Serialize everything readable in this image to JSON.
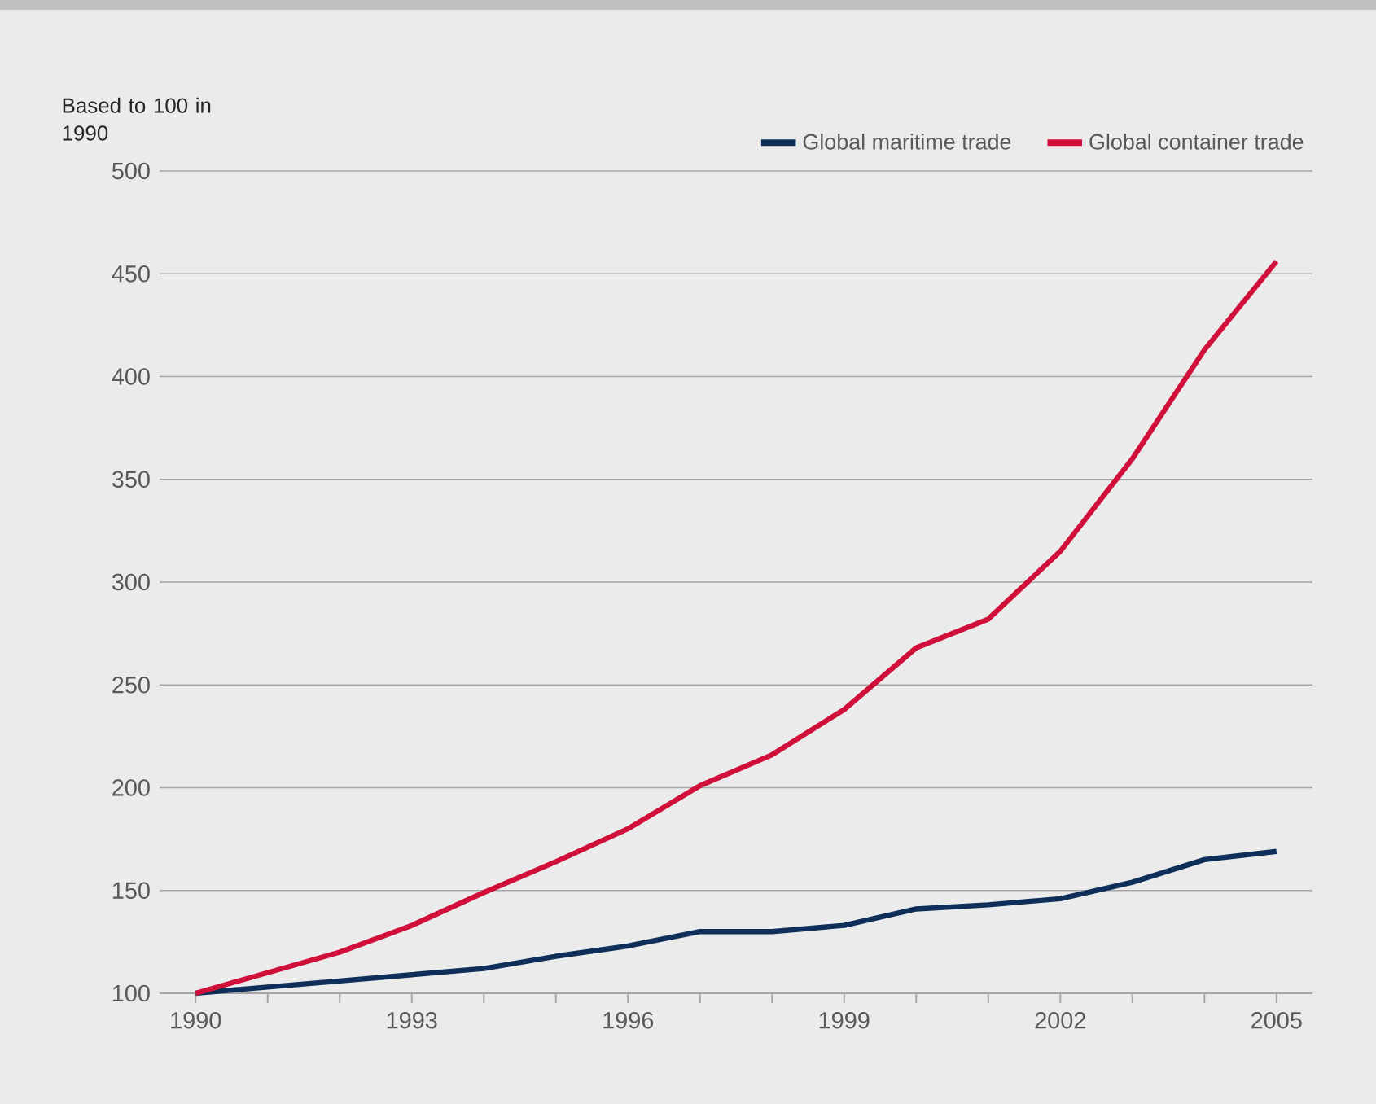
{
  "chart_data": {
    "type": "line",
    "ylabel": "Based to 100 in 1990",
    "x": [
      1990,
      1991,
      1992,
      1993,
      1994,
      1995,
      1996,
      1997,
      1998,
      1999,
      2000,
      2001,
      2002,
      2003,
      2004,
      2005
    ],
    "series": [
      {
        "name": "Global maritime trade",
        "color": "#0d2f5a",
        "values": [
          100,
          103,
          106,
          109,
          112,
          118,
          123,
          130,
          130,
          133,
          141,
          143,
          146,
          154,
          165,
          169
        ]
      },
      {
        "name": "Global container trade",
        "color": "#d0103a",
        "values": [
          100,
          110,
          120,
          133,
          149,
          164,
          180,
          201,
          216,
          238,
          268,
          282,
          315,
          360,
          413,
          456
        ]
      }
    ],
    "xlim": [
      1989.5,
      2005.5
    ],
    "ylim": [
      100,
      500
    ],
    "xticks": [
      1990,
      {
        "value": 1991,
        "label": null
      },
      {
        "value": 1992,
        "label": null
      },
      1993,
      {
        "value": 1994,
        "label": null
      },
      {
        "value": 1995,
        "label": null
      },
      1996,
      {
        "value": 1997,
        "label": null
      },
      {
        "value": 1998,
        "label": null
      },
      1999,
      {
        "value": 2000,
        "label": null
      },
      {
        "value": 2001,
        "label": null
      },
      2002,
      {
        "value": 2003,
        "label": null
      },
      {
        "value": 2004,
        "label": null
      },
      2005
    ],
    "yticks": [
      100,
      150,
      200,
      250,
      300,
      350,
      400,
      450,
      500
    ],
    "grid": "y",
    "legend": "top right",
    "marker": "none",
    "line_style": "solid"
  }
}
